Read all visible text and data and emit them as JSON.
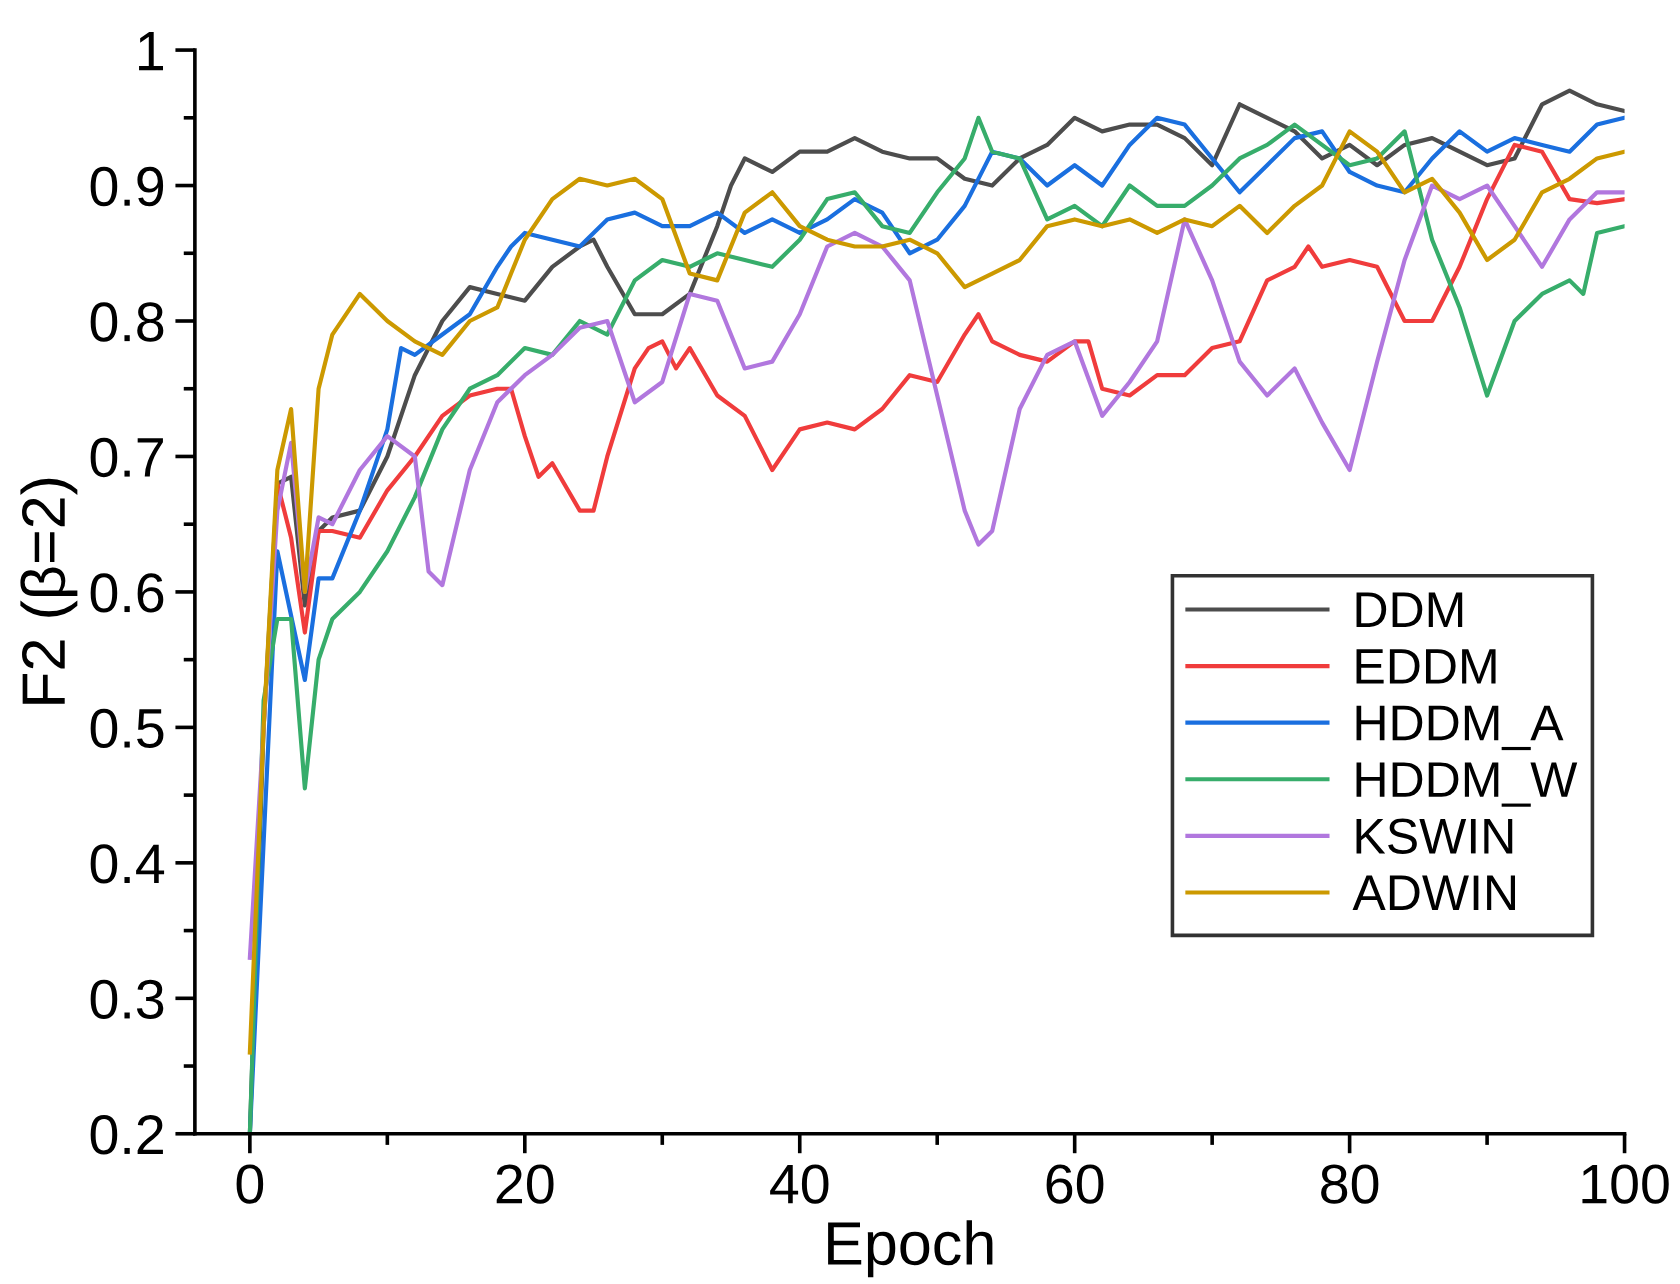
{
  "chart_data": {
    "type": "line",
    "xlabel": "Epoch",
    "ylabel": "F2 (β=2)",
    "xlim": [
      -4,
      100
    ],
    "xticks": [
      0,
      20,
      40,
      60,
      80,
      100
    ],
    "ylim": [
      0.2,
      1
    ],
    "yticks": [
      0.2,
      0.3,
      0.4,
      0.5,
      0.6,
      0.7,
      0.8,
      0.9,
      1
    ],
    "legend": "right",
    "grid": false,
    "marker": "none",
    "line_style": "solid",
    "series": [
      {
        "name": "DDM",
        "color": "#4d4d4d",
        "x": [
          0,
          1,
          2,
          3,
          4,
          5,
          6,
          8,
          10,
          12,
          14,
          16,
          18,
          20,
          22,
          24,
          25,
          26,
          28,
          30,
          32,
          34,
          35,
          36,
          38,
          40,
          42,
          44,
          46,
          48,
          50,
          52,
          54,
          56,
          58,
          60,
          62,
          64,
          66,
          68,
          70,
          72,
          74,
          76,
          78,
          80,
          82,
          84,
          86,
          88,
          90,
          92,
          94,
          96,
          98,
          100
        ],
        "values": [
          0.2,
          0.5,
          0.68,
          0.685,
          0.59,
          0.645,
          0.655,
          0.66,
          0.7,
          0.76,
          0.8,
          0.825,
          0.82,
          0.815,
          0.84,
          0.855,
          0.86,
          0.84,
          0.805,
          0.805,
          0.82,
          0.87,
          0.9,
          0.92,
          0.91,
          0.925,
          0.925,
          0.935,
          0.925,
          0.92,
          0.92,
          0.905,
          0.9,
          0.92,
          0.93,
          0.95,
          0.94,
          0.945,
          0.945,
          0.935,
          0.915,
          0.96,
          0.95,
          0.94,
          0.92,
          0.93,
          0.915,
          0.93,
          0.935,
          0.925,
          0.915,
          0.92,
          0.96,
          0.97,
          0.96,
          0.955
        ]
      },
      {
        "name": "EDDM",
        "color": "#f03c3c",
        "x": [
          2,
          3,
          4,
          5,
          6,
          8,
          10,
          12,
          14,
          16,
          18,
          19,
          20,
          21,
          22,
          24,
          25,
          26,
          28,
          29,
          30,
          31,
          32,
          34,
          36,
          38,
          40,
          42,
          44,
          46,
          48,
          50,
          52,
          53,
          54,
          56,
          58,
          60,
          61,
          62,
          64,
          66,
          68,
          70,
          72,
          74,
          76,
          77,
          78,
          80,
          82,
          84,
          86,
          88,
          90,
          92,
          94,
          96,
          98,
          100
        ],
        "values": [
          0.68,
          0.64,
          0.57,
          0.645,
          0.645,
          0.64,
          0.675,
          0.7,
          0.73,
          0.745,
          0.75,
          0.75,
          0.715,
          0.685,
          0.695,
          0.66,
          0.66,
          0.7,
          0.765,
          0.78,
          0.785,
          0.765,
          0.78,
          0.745,
          0.73,
          0.69,
          0.72,
          0.725,
          0.72,
          0.735,
          0.76,
          0.755,
          0.79,
          0.805,
          0.785,
          0.775,
          0.77,
          0.785,
          0.785,
          0.75,
          0.745,
          0.76,
          0.76,
          0.78,
          0.785,
          0.83,
          0.84,
          0.855,
          0.84,
          0.845,
          0.84,
          0.8,
          0.8,
          0.84,
          0.89,
          0.93,
          0.925,
          0.89,
          0.887,
          0.89
        ]
      },
      {
        "name": "HDDM_A",
        "color": "#1a6fdf",
        "x": [
          0,
          2,
          4,
          5,
          6,
          8,
          10,
          11,
          12,
          14,
          16,
          18,
          19,
          20,
          22,
          24,
          26,
          28,
          30,
          32,
          34,
          36,
          38,
          40,
          42,
          44,
          46,
          48,
          50,
          52,
          54,
          56,
          58,
          60,
          62,
          64,
          66,
          68,
          70,
          72,
          74,
          76,
          78,
          80,
          82,
          84,
          86,
          88,
          90,
          92,
          94,
          96,
          98,
          100
        ],
        "values": [
          0.2,
          0.63,
          0.535,
          0.61,
          0.61,
          0.66,
          0.72,
          0.78,
          0.775,
          0.79,
          0.805,
          0.84,
          0.855,
          0.865,
          0.86,
          0.855,
          0.875,
          0.88,
          0.87,
          0.87,
          0.88,
          0.865,
          0.875,
          0.865,
          0.875,
          0.89,
          0.88,
          0.85,
          0.86,
          0.885,
          0.925,
          0.92,
          0.9,
          0.915,
          0.9,
          0.93,
          0.95,
          0.945,
          0.92,
          0.895,
          0.915,
          0.935,
          0.94,
          0.91,
          0.9,
          0.895,
          0.92,
          0.94,
          0.925,
          0.935,
          0.93,
          0.925,
          0.945,
          0.95
        ]
      },
      {
        "name": "HDDM_W",
        "color": "#37ad6b",
        "x": [
          0,
          1,
          2,
          3,
          4,
          5,
          6,
          8,
          10,
          12,
          14,
          16,
          18,
          20,
          22,
          24,
          26,
          28,
          30,
          32,
          34,
          36,
          38,
          40,
          42,
          44,
          46,
          48,
          50,
          52,
          53,
          54,
          56,
          58,
          60,
          62,
          64,
          66,
          68,
          70,
          72,
          74,
          76,
          78,
          80,
          82,
          84,
          86,
          88,
          90,
          92,
          94,
          96,
          97,
          98,
          100
        ],
        "values": [
          0.2,
          0.52,
          0.58,
          0.58,
          0.455,
          0.55,
          0.58,
          0.6,
          0.63,
          0.67,
          0.72,
          0.75,
          0.76,
          0.78,
          0.775,
          0.8,
          0.79,
          0.83,
          0.845,
          0.84,
          0.85,
          0.845,
          0.84,
          0.86,
          0.89,
          0.895,
          0.87,
          0.865,
          0.895,
          0.92,
          0.95,
          0.925,
          0.92,
          0.875,
          0.885,
          0.87,
          0.9,
          0.885,
          0.885,
          0.9,
          0.92,
          0.93,
          0.945,
          0.93,
          0.915,
          0.92,
          0.94,
          0.86,
          0.81,
          0.745,
          0.8,
          0.82,
          0.83,
          0.82,
          0.865,
          0.87
        ]
      },
      {
        "name": "KSWIN",
        "color": "#b177de",
        "x": [
          0,
          1,
          2,
          3,
          4,
          5,
          6,
          8,
          10,
          12,
          13,
          14,
          16,
          18,
          20,
          22,
          24,
          26,
          28,
          30,
          32,
          34,
          36,
          38,
          40,
          42,
          44,
          46,
          48,
          50,
          52,
          53,
          54,
          56,
          58,
          60,
          62,
          64,
          66,
          68,
          70,
          72,
          74,
          76,
          78,
          80,
          82,
          84,
          86,
          88,
          90,
          92,
          94,
          96,
          98,
          100
        ],
        "values": [
          0.33,
          0.5,
          0.66,
          0.71,
          0.6,
          0.655,
          0.65,
          0.69,
          0.715,
          0.7,
          0.615,
          0.605,
          0.69,
          0.74,
          0.76,
          0.775,
          0.795,
          0.8,
          0.74,
          0.755,
          0.82,
          0.815,
          0.765,
          0.77,
          0.805,
          0.855,
          0.865,
          0.855,
          0.83,
          0.745,
          0.66,
          0.635,
          0.645,
          0.735,
          0.775,
          0.785,
          0.73,
          0.755,
          0.785,
          0.875,
          0.83,
          0.77,
          0.745,
          0.765,
          0.725,
          0.69,
          0.77,
          0.845,
          0.9,
          0.89,
          0.9,
          0.87,
          0.84,
          0.875,
          0.895,
          0.895
        ]
      },
      {
        "name": "ADWIN",
        "color": "#cc9900",
        "x": [
          0,
          1,
          2,
          3,
          4,
          5,
          6,
          8,
          10,
          12,
          14,
          16,
          18,
          19,
          20,
          22,
          24,
          26,
          28,
          30,
          32,
          34,
          36,
          38,
          40,
          42,
          44,
          46,
          48,
          50,
          52,
          54,
          56,
          58,
          60,
          62,
          64,
          66,
          68,
          70,
          72,
          74,
          76,
          78,
          80,
          82,
          84,
          86,
          88,
          90,
          92,
          94,
          96,
          98,
          100
        ],
        "values": [
          0.26,
          0.5,
          0.69,
          0.735,
          0.6,
          0.75,
          0.79,
          0.82,
          0.8,
          0.785,
          0.775,
          0.8,
          0.81,
          0.835,
          0.86,
          0.89,
          0.905,
          0.9,
          0.905,
          0.89,
          0.835,
          0.83,
          0.88,
          0.895,
          0.87,
          0.86,
          0.855,
          0.855,
          0.86,
          0.85,
          0.825,
          0.835,
          0.845,
          0.87,
          0.875,
          0.87,
          0.875,
          0.865,
          0.875,
          0.87,
          0.885,
          0.865,
          0.885,
          0.9,
          0.94,
          0.925,
          0.895,
          0.905,
          0.88,
          0.845,
          0.86,
          0.895,
          0.905,
          0.92,
          0.925
        ]
      }
    ]
  }
}
